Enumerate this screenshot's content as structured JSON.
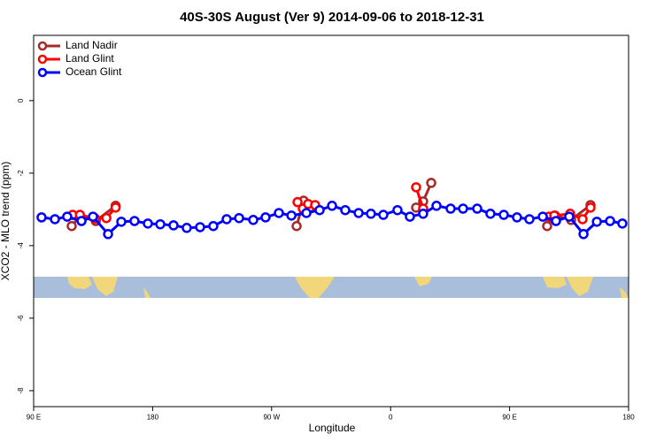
{
  "chart_data": {
    "type": "line",
    "title": "40S-30S August (Ver 9)   2014-09-06 to 2018-12-31",
    "x_label": "Longitude",
    "y_label": "XCO2 - MLO trend (ppm)",
    "xlim": [
      90,
      540
    ],
    "ylim": [
      -8.44,
      1.8
    ],
    "xticks": [
      {
        "value": 90,
        "label": "90 E"
      },
      180,
      {
        "value": 270,
        "label": "90 W"
      },
      {
        "value": 360,
        "label": "0"
      },
      {
        "value": 450,
        "label": "90 E"
      },
      {
        "value": 540,
        "label": "180"
      }
    ],
    "yticks": [
      0,
      -2,
      -4,
      -6,
      -8
    ],
    "legend": "top-left",
    "series": [
      {
        "name": "Land Nadir",
        "color": "#a52a2a",
        "x": [
          118.8,
          124.8,
          137,
          152,
          null,
          288.9,
          294.2,
          298.9,
          null,
          379.3,
          384.6,
          390.7,
          null,
          478.4,
          484.4,
          496.5,
          511.2
        ],
        "values": [
          -3.46,
          -3.2,
          -3.32,
          -2.9,
          null,
          -3.46,
          -2.76,
          -2.95,
          null,
          -2.95,
          -2.78,
          -2.27,
          null,
          -3.46,
          -3.17,
          -3.29,
          -2.88
        ]
      },
      {
        "name": "Land Glint",
        "color": "#ff0000",
        "x": [
          119.5,
          125,
          136.5,
          145,
          152,
          null,
          289.6,
          293.6,
          297.6,
          302.9,
          null,
          379.3,
          384.6,
          null,
          479.7,
          483.8,
          495.8,
          505.2,
          511.2
        ],
        "values": [
          -3.15,
          -3.15,
          -3.25,
          -3.24,
          -2.95,
          null,
          -2.8,
          -2.98,
          -2.85,
          -2.88,
          null,
          -2.39,
          -2.98,
          null,
          -3.2,
          -3.17,
          -3.12,
          -3.27,
          -2.95
        ]
      },
      {
        "name": "Ocean Glint",
        "color": "#0000ff",
        "x": [
          96,
          106.1,
          115.4,
          126.2,
          134.9,
          146.3,
          156.3,
          166.3,
          176.4,
          185.8,
          195.8,
          205.8,
          215.9,
          225.9,
          236,
          245.4,
          256.1,
          265.4,
          275.5,
          285,
          296.3,
          306.3,
          315.7,
          325.7,
          335.8,
          345.1,
          354.5,
          365.2,
          374.6,
          384.6,
          394.7,
          405.4,
          414.8,
          425.5,
          435.5,
          445.6,
          455.6,
          465,
          475.1,
          485.1,
          495.1,
          505.9,
          516,
          526,
          535.3
        ],
        "values": [
          -3.22,
          -3.27,
          -3.2,
          -3.32,
          -3.2,
          -3.68,
          -3.34,
          -3.32,
          -3.39,
          -3.41,
          -3.44,
          -3.51,
          -3.49,
          -3.46,
          -3.27,
          -3.24,
          -3.29,
          -3.22,
          -3.1,
          -3.17,
          -3.1,
          -3.02,
          -2.9,
          -3.02,
          -3.1,
          -3.12,
          -3.15,
          -3.02,
          -3.2,
          -3.12,
          -2.9,
          -2.98,
          -2.98,
          -2.98,
          -3.12,
          -3.15,
          -3.22,
          -3.27,
          -3.2,
          -3.32,
          -3.2,
          -3.68,
          -3.34,
          -3.32,
          -3.39
        ]
      }
    ]
  }
}
